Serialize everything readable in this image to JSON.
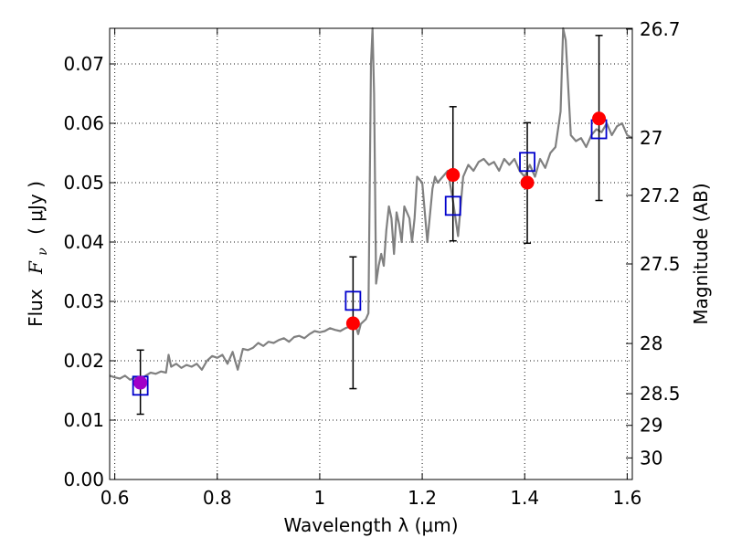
{
  "chart_data": {
    "type": "line",
    "xlabel": "Wavelength  λ (μm)",
    "ylabel_prefix": "Flux",
    "ylabel_var": "F",
    "ylabel_sub": "ν",
    "ylabel_suffix": "( μJy )",
    "ylabel_right": "Magnitude (AB)",
    "xlim": [
      0.59,
      1.61
    ],
    "ylim": [
      0.0,
      0.076
    ],
    "grid": true,
    "x_ticks": [
      {
        "value": 0.6,
        "label": "0.6"
      },
      {
        "value": 0.8,
        "label": "0.8"
      },
      {
        "value": 1.0,
        "label": "1"
      },
      {
        "value": 1.2,
        "label": "1.2"
      },
      {
        "value": 1.4,
        "label": "1.4"
      },
      {
        "value": 1.6,
        "label": "1.6"
      }
    ],
    "y_ticks": [
      {
        "value": 0.0,
        "label": "0.00"
      },
      {
        "value": 0.01,
        "label": "0.01"
      },
      {
        "value": 0.02,
        "label": "0.02"
      },
      {
        "value": 0.03,
        "label": "0.03"
      },
      {
        "value": 0.04,
        "label": "0.04"
      },
      {
        "value": 0.05,
        "label": "0.05"
      },
      {
        "value": 0.06,
        "label": "0.06"
      },
      {
        "value": 0.07,
        "label": "0.07"
      }
    ],
    "mag_ticks": [
      {
        "mag": 26.7,
        "label": "26.7"
      },
      {
        "mag": 27,
        "label": "27"
      },
      {
        "mag": 27.2,
        "label": "27.2"
      },
      {
        "mag": 27.5,
        "label": "27.5"
      },
      {
        "mag": 28,
        "label": "28"
      },
      {
        "mag": 28.5,
        "label": "28.5"
      },
      {
        "mag": 29,
        "label": "29"
      },
      {
        "mag": 30,
        "label": "30"
      }
    ],
    "series": [
      {
        "kind": "line",
        "color": "#808080",
        "x": [
          0.59,
          0.6,
          0.61,
          0.62,
          0.63,
          0.64,
          0.65,
          0.66,
          0.67,
          0.68,
          0.69,
          0.7,
          0.705,
          0.71,
          0.72,
          0.73,
          0.74,
          0.75,
          0.76,
          0.77,
          0.78,
          0.79,
          0.8,
          0.81,
          0.82,
          0.83,
          0.84,
          0.85,
          0.86,
          0.87,
          0.88,
          0.89,
          0.9,
          0.91,
          0.92,
          0.93,
          0.94,
          0.95,
          0.96,
          0.97,
          0.98,
          0.99,
          1.0,
          1.01,
          1.02,
          1.03,
          1.04,
          1.05,
          1.06,
          1.07,
          1.075,
          1.08,
          1.09,
          1.095,
          1.1,
          1.103,
          1.106,
          1.11,
          1.115,
          1.12,
          1.125,
          1.13,
          1.135,
          1.14,
          1.145,
          1.15,
          1.155,
          1.16,
          1.165,
          1.17,
          1.175,
          1.18,
          1.185,
          1.19,
          1.2,
          1.21,
          1.22,
          1.225,
          1.23,
          1.24,
          1.25,
          1.26,
          1.27,
          1.28,
          1.29,
          1.3,
          1.31,
          1.32,
          1.33,
          1.34,
          1.35,
          1.36,
          1.37,
          1.38,
          1.39,
          1.4,
          1.41,
          1.42,
          1.43,
          1.44,
          1.45,
          1.46,
          1.47,
          1.475,
          1.48,
          1.49,
          1.5,
          1.51,
          1.52,
          1.53,
          1.54,
          1.55,
          1.56,
          1.57,
          1.58,
          1.59,
          1.6,
          1.61
        ],
        "y": [
          0.0175,
          0.0172,
          0.017,
          0.0175,
          0.0168,
          0.0172,
          0.0165,
          0.0175,
          0.018,
          0.0178,
          0.0182,
          0.018,
          0.021,
          0.019,
          0.0195,
          0.0188,
          0.0193,
          0.019,
          0.0195,
          0.0185,
          0.02,
          0.0208,
          0.0205,
          0.021,
          0.0195,
          0.0215,
          0.0185,
          0.022,
          0.0218,
          0.0222,
          0.023,
          0.0225,
          0.0232,
          0.023,
          0.0235,
          0.0238,
          0.0232,
          0.024,
          0.0242,
          0.0238,
          0.0245,
          0.025,
          0.0248,
          0.025,
          0.0255,
          0.0252,
          0.025,
          0.0255,
          0.0258,
          0.026,
          0.0245,
          0.0262,
          0.027,
          0.028,
          0.07,
          0.076,
          0.065,
          0.033,
          0.036,
          0.038,
          0.036,
          0.042,
          0.046,
          0.044,
          0.038,
          0.045,
          0.043,
          0.04,
          0.046,
          0.045,
          0.044,
          0.04,
          0.044,
          0.051,
          0.05,
          0.04,
          0.049,
          0.051,
          0.05,
          0.051,
          0.052,
          0.047,
          0.041,
          0.051,
          0.053,
          0.052,
          0.0535,
          0.054,
          0.053,
          0.0535,
          0.052,
          0.054,
          0.053,
          0.054,
          0.052,
          0.051,
          0.053,
          0.051,
          0.054,
          0.0525,
          0.055,
          0.056,
          0.062,
          0.076,
          0.074,
          0.058,
          0.057,
          0.0575,
          0.056,
          0.058,
          0.059,
          0.0585,
          0.06,
          0.058,
          0.0595,
          0.06,
          0.058,
          0.0575
        ]
      },
      {
        "kind": "model-points",
        "marker": "open-square",
        "color": "#0000cc",
        "x": [
          0.65,
          1.065,
          1.26,
          1.405,
          1.545
        ],
        "y": [
          0.0158,
          0.0301,
          0.0461,
          0.0535,
          0.059
        ]
      },
      {
        "kind": "observed",
        "marker": "filled-circle",
        "color": "#ff0000",
        "x": [
          0.65,
          1.065,
          1.26,
          1.405,
          1.545
        ],
        "y": [
          0.0163,
          0.0263,
          0.0513,
          0.05,
          0.0608
        ],
        "err_low": [
          0.011,
          0.0153,
          0.0402,
          0.0398,
          0.047
        ],
        "err_high": [
          0.0218,
          0.0375,
          0.0628,
          0.0601,
          0.0748
        ]
      }
    ]
  }
}
